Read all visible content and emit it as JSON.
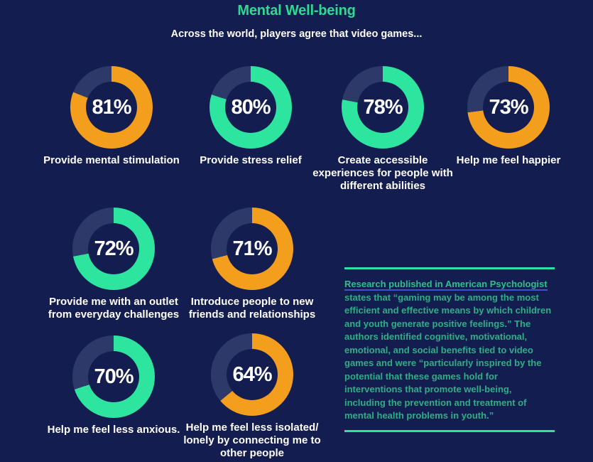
{
  "header": {
    "title": "Mental Well-being",
    "subtitle": "Across the world, players agree that video games..."
  },
  "colors": {
    "background": "#141D4F",
    "donut_track_navy": "#2D3A69",
    "donut_orange": "#F49E1E",
    "donut_green": "#2EE5A0",
    "title_green": "#2BDB8F",
    "research_text_green": "#2FAE85",
    "divider_line_green": "#2EE3A1",
    "link_underline_blue": "#3A54C9",
    "text_white": "#FFFFFF"
  },
  "chart_data": {
    "type": "pie",
    "subtype": "donut-grid",
    "unit": "%",
    "track_label": "remainder",
    "items": [
      {
        "value": 81,
        "color": "orange",
        "label": "Provide mental stimulation"
      },
      {
        "value": 80,
        "color": "green",
        "label": "Provide stress relief"
      },
      {
        "value": 78,
        "color": "green",
        "label": "Create accessible\nexperiences for people with\ndifferent abilities"
      },
      {
        "value": 73,
        "color": "orange",
        "label": "Help me feel happier"
      },
      {
        "value": 72,
        "color": "green",
        "label": "Provide me with an outlet\nfrom everyday challenges"
      },
      {
        "value": 71,
        "color": "orange",
        "label": "Introduce people to new\nfriends and relationships"
      },
      {
        "value": 70,
        "color": "green",
        "label": "Help me feel less anxious."
      },
      {
        "value": 64,
        "color": "orange",
        "label": "Help me feel less isolated/\nlonely by connecting me to\nother people"
      }
    ],
    "title": "Mental Well-being",
    "subtitle": "Across the world, players agree that video games..."
  },
  "research": {
    "link_text": "Research published in American Psychologist",
    "body_text": " states that “gaming may be among the most efficient and effective means by which children and youth generate positive feelings.” The authors identified cognitive, motivational, emotional, and social benefits tied to video games and were “particularly inspired by the potential that these games hold for interventions that promote well-being, including the prevention and treatment of mental health problems in youth.”"
  }
}
